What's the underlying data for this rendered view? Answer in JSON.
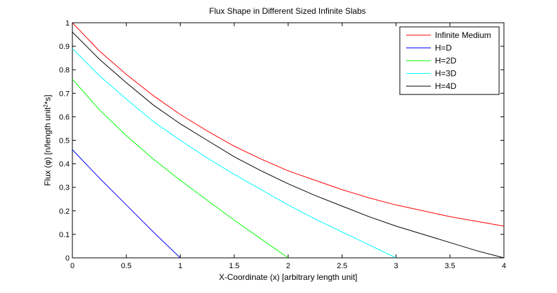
{
  "chart_data": {
    "type": "line",
    "title": "Flux Shape in Different Sized Infinite Slabs",
    "xlabel": "X-Coordinate (x) [arbitrary length unit]",
    "ylabel": {
      "pre": "Flux (",
      "sym": "φ",
      "mid": ") [n/length unit",
      "sup": "2",
      "post": "*s]"
    },
    "xlim": [
      0,
      4
    ],
    "ylim": [
      0,
      1
    ],
    "xticks": [
      0,
      0.5,
      1,
      1.5,
      2,
      2.5,
      3,
      3.5,
      4
    ],
    "xtick_labels": [
      "0",
      "0.5",
      "1",
      "1.5",
      "2",
      "2.5",
      "3",
      "3.5",
      "4"
    ],
    "yticks": [
      0,
      0.1,
      0.2,
      0.3,
      0.4,
      0.5,
      0.6,
      0.7,
      0.8,
      0.9,
      1
    ],
    "ytick_labels": [
      "0",
      "0.1",
      "0.2",
      "0.3",
      "0.4",
      "0.5",
      "0.6",
      "0.7",
      "0.8",
      "0.9",
      "1"
    ],
    "grid": false,
    "legend_position": "top-right",
    "series": [
      {
        "name": "Infinite Medium",
        "color": "#ff0000",
        "x": [
          0,
          0.25,
          0.5,
          0.75,
          1,
          1.25,
          1.5,
          1.75,
          2,
          2.25,
          2.5,
          2.75,
          3,
          3.25,
          3.5,
          3.75,
          4
        ],
        "y": [
          1.0,
          0.88,
          0.78,
          0.69,
          0.61,
          0.54,
          0.475,
          0.42,
          0.37,
          0.33,
          0.29,
          0.255,
          0.225,
          0.2,
          0.175,
          0.155,
          0.135
        ]
      },
      {
        "name": "H=D",
        "color": "#0000ff",
        "x": [
          0,
          0.25,
          0.5,
          0.75,
          1
        ],
        "y": [
          0.46,
          0.34,
          0.225,
          0.11,
          0.0
        ]
      },
      {
        "name": "H=2D",
        "color": "#00ff00",
        "x": [
          0,
          0.25,
          0.5,
          0.75,
          1,
          1.25,
          1.5,
          1.75,
          2
        ],
        "y": [
          0.76,
          0.63,
          0.52,
          0.42,
          0.33,
          0.245,
          0.16,
          0.08,
          0.0
        ]
      },
      {
        "name": "H=3D",
        "color": "#00ffff",
        "x": [
          0,
          0.25,
          0.5,
          0.75,
          1,
          1.25,
          1.5,
          1.75,
          2,
          2.25,
          2.5,
          2.75,
          3
        ],
        "y": [
          0.89,
          0.775,
          0.675,
          0.58,
          0.5,
          0.425,
          0.355,
          0.29,
          0.225,
          0.165,
          0.11,
          0.055,
          0.0
        ]
      },
      {
        "name": "H=4D",
        "color": "#000000",
        "x": [
          0,
          0.25,
          0.5,
          0.75,
          1,
          1.25,
          1.5,
          1.75,
          2,
          2.25,
          2.5,
          2.75,
          3,
          3.25,
          3.5,
          3.75,
          4
        ],
        "y": [
          0.96,
          0.845,
          0.745,
          0.65,
          0.57,
          0.5,
          0.43,
          0.37,
          0.315,
          0.265,
          0.22,
          0.175,
          0.135,
          0.1,
          0.065,
          0.03,
          0.0
        ]
      }
    ]
  }
}
